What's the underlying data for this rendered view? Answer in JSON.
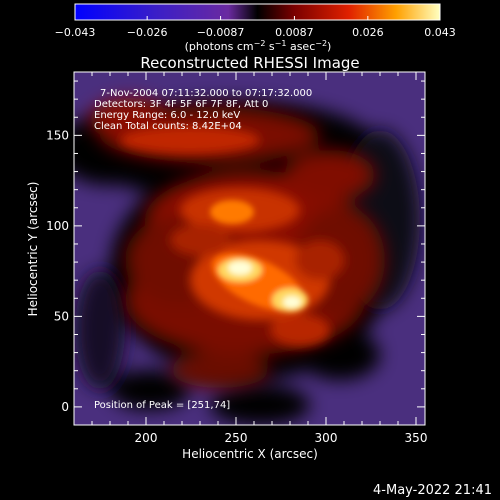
{
  "colorbar": {
    "tick_labels": [
      "−0.043",
      "−0.026",
      "−0.0087",
      "0.0087",
      "0.026",
      "0.043"
    ],
    "tick_values": [
      -0.043,
      -0.026,
      -0.0087,
      0.0087,
      0.026,
      0.043
    ],
    "min": -0.043,
    "max": 0.043,
    "unit_main": "(photons cm",
    "unit_exp1": "−2",
    "unit_mid": " s",
    "unit_exp2": "−1",
    "unit_tail": " asec",
    "unit_exp3": "−2",
    "unit_close": ")"
  },
  "chart_data": {
    "type": "heatmap",
    "title": "Reconstructed RHESSI Image",
    "xlabel": "Heliocentric X (arcsec)",
    "ylabel": "Heliocentric Y (arcsec)",
    "xlim": [
      160,
      355
    ],
    "ylim": [
      -10,
      185
    ],
    "x_ticks": [
      200,
      250,
      300,
      350
    ],
    "y_ticks": [
      0,
      50,
      100,
      150
    ],
    "annotations": [
      "7-Nov-2004 07:11:32.000 to 07:17:32.000",
      "Detectors: 3F 4F 5F 6F 7F 8F, Att 0",
      "Energy Range: 6.0 - 12.0 keV",
      "Clean     Total counts: 8.42E+04"
    ],
    "peak_label": "Position of Peak = [251,74]",
    "peak": [
      251,
      74
    ],
    "total_counts": 84200,
    "energy_range_kev": [
      6.0,
      12.0
    ]
  },
  "footer": {
    "timestamp": "4-May-2022 21:41"
  }
}
